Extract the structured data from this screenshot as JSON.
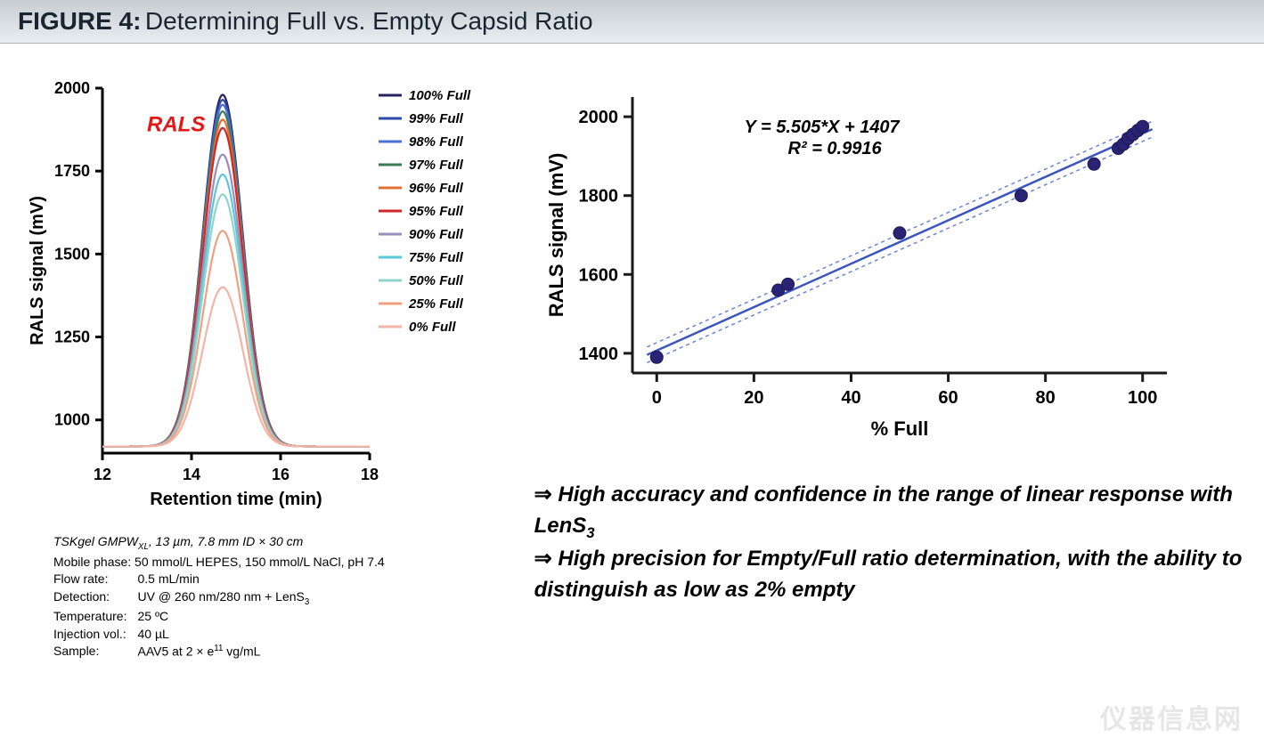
{
  "header": {
    "bold": "FIGURE 4:",
    "title": "Determining Full vs. Empty Capsid Ratio"
  },
  "left_chart": {
    "type": "line-peaks",
    "annotation": "RALS",
    "annotation_color": "#e31818",
    "annotation_fontsize": 24,
    "xlim": [
      12,
      18
    ],
    "ylim": [
      900,
      2000
    ],
    "x_ticks": [
      12,
      14,
      16,
      18
    ],
    "y_ticks": [
      1000,
      1250,
      1500,
      1750,
      2000
    ],
    "xlabel": "Retention time (min)",
    "ylabel": "RALS signal (mV)",
    "label_fontsize": 20,
    "tick_fontsize": 18,
    "axis_color": "#000000",
    "line_width": 2.2,
    "baseline": 920,
    "peak_center": 14.7,
    "peak_width": 0.45,
    "series": [
      {
        "label": "100% Full",
        "peak": 1980,
        "color": "#2a2260"
      },
      {
        "label": "99% Full",
        "peak": 1965,
        "color": "#2d4aa8"
      },
      {
        "label": "98% Full",
        "peak": 1950,
        "color": "#4a6fd6"
      },
      {
        "label": "97% Full",
        "peak": 1930,
        "color": "#3c7a5a"
      },
      {
        "label": "96% Full",
        "peak": 1905,
        "color": "#e07030"
      },
      {
        "label": "95% Full",
        "peak": 1880,
        "color": "#d02828"
      },
      {
        "label": "90% Full",
        "peak": 1800,
        "color": "#9a8fbc"
      },
      {
        "label": "75% Full",
        "peak": 1740,
        "color": "#5ac8da"
      },
      {
        "label": "50% Full",
        "peak": 1680,
        "color": "#8fd4c8"
      },
      {
        "label": "25% Full",
        "peak": 1570,
        "color": "#f0a080"
      },
      {
        "label": "0% Full",
        "peak": 1400,
        "color": "#f4b4a8"
      }
    ],
    "legend_fontsize": 15,
    "legend_style": "italic-bold"
  },
  "right_chart": {
    "type": "scatter-linear-fit",
    "xlim": [
      -5,
      105
    ],
    "ylim": [
      1350,
      2050
    ],
    "x_ticks": [
      0,
      20,
      40,
      60,
      80,
      100
    ],
    "y_ticks": [
      1400,
      1600,
      1800,
      2000
    ],
    "xlabel": "% Full",
    "ylabel": "RALS signal (mV)",
    "label_fontsize": 22,
    "tick_fontsize": 20,
    "axis_color": "#1a1a1a",
    "marker_color": "#2a2275",
    "marker_size": 7,
    "fit_line_color": "#3a55c0",
    "fit_line_width": 2.5,
    "ci_color": "#6a85d8",
    "ci_dash": "4,4",
    "fit": {
      "slope": 5.505,
      "intercept": 1407
    },
    "equation_line1": "Y = 5.505*X + 1407",
    "equation_line2": "R² = 0.9916",
    "equation_fontsize": 20,
    "points": [
      {
        "x": 0,
        "y": 1390
      },
      {
        "x": 25,
        "y": 1560
      },
      {
        "x": 27,
        "y": 1575
      },
      {
        "x": 50,
        "y": 1705
      },
      {
        "x": 75,
        "y": 1800
      },
      {
        "x": 90,
        "y": 1880
      },
      {
        "x": 95,
        "y": 1920
      },
      {
        "x": 96,
        "y": 1930
      },
      {
        "x": 97,
        "y": 1945
      },
      {
        "x": 98,
        "y": 1955
      },
      {
        "x": 99,
        "y": 1965
      },
      {
        "x": 100,
        "y": 1975
      }
    ]
  },
  "method": {
    "line1_html": "TSKgel GMPW<sub>XL</sub>, 13 µm, 7.8 mm ID  × 30 cm",
    "line2": "Mobile phase: 50 mmol/L HEPES, 150 mmol/L NaCl, pH 7.4",
    "rows": [
      {
        "k": "Flow rate:",
        "v": "0.5 mL/min"
      },
      {
        "k": "Detection:",
        "v_html": "UV @ 260 nm/280 nm + LenS<sub>3</sub>"
      },
      {
        "k": "Temperature:",
        "v": "25 ºC"
      },
      {
        "k": "Injection vol.:",
        "v": "40 µL"
      },
      {
        "k": "Sample:",
        "v_html": "AAV5 at 2  × e<sup>11</sup> vg/mL"
      }
    ]
  },
  "notes": {
    "items": [
      "High accuracy and confidence in the range of linear response with LenS<sub>3</sub>",
      "High precision for Empty/Full ratio determination, with the ability to distinguish as low as 2% empty"
    ]
  },
  "watermark": "仪器信息网"
}
